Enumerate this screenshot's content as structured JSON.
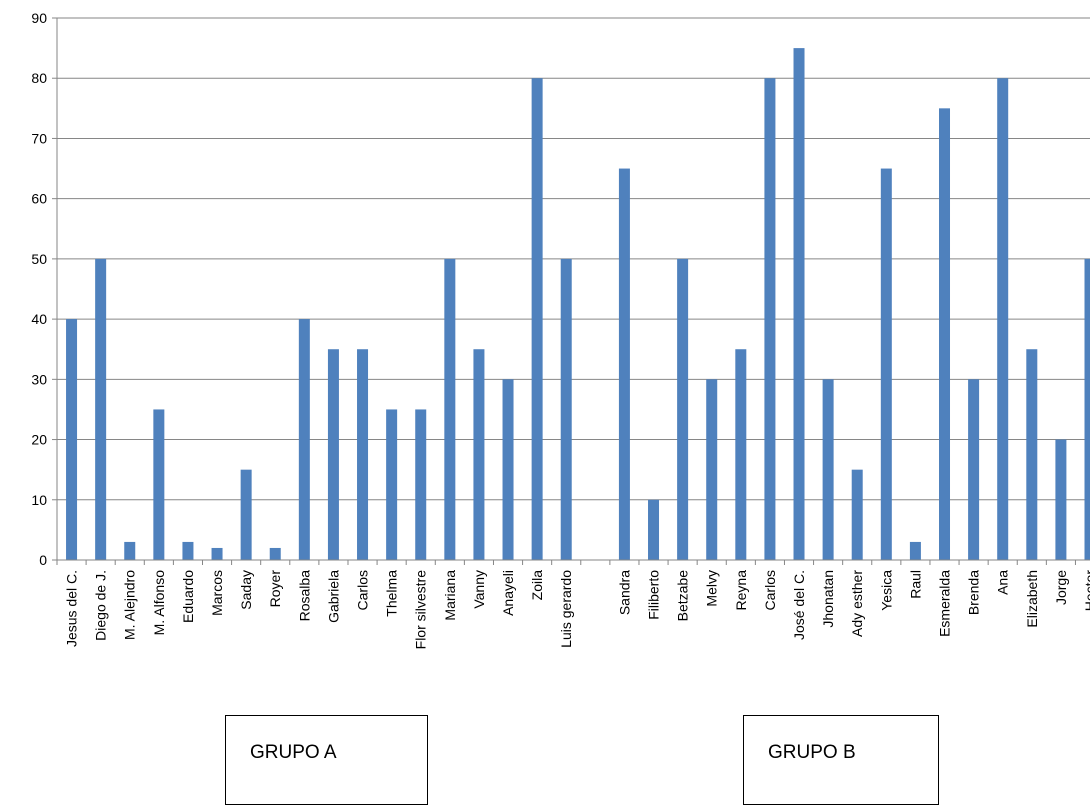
{
  "chart_data": {
    "type": "bar",
    "title": "",
    "xlabel": "",
    "ylabel": "",
    "ylim": [
      0,
      90
    ],
    "yticks": [
      0,
      10,
      20,
      30,
      40,
      50,
      60,
      70,
      80,
      90
    ],
    "grid": true,
    "legend": "none",
    "bar_color": "#4F81BD",
    "categories": [
      "Jesus del C.",
      "Diego de J.",
      "M. Alejndro",
      "M. Alfonso",
      "Eduardo",
      "Marcos",
      "Saday",
      "Royer",
      "Rosalba",
      "Gabriela",
      "Carlos",
      "Thelma",
      "Flor silvestre",
      "Mariana",
      "Vanny",
      "Anayeli",
      "Zoila",
      "Luis gerardo",
      "",
      "Sandra",
      "Filiberto",
      "Betzabe",
      "Melvy",
      "Reyna",
      "Carlos",
      "José  del C.",
      "Jhonatan",
      "Ady esther",
      "Yesica",
      "Raul",
      "Esmeralda",
      "Brenda",
      "Ana",
      "Elizabeth",
      "Jorge",
      "Hector"
    ],
    "values": [
      40,
      50,
      3,
      25,
      3,
      2,
      15,
      2,
      40,
      35,
      35,
      25,
      25,
      50,
      35,
      30,
      80,
      50,
      null,
      65,
      10,
      50,
      30,
      35,
      80,
      85,
      30,
      15,
      65,
      3,
      75,
      30,
      80,
      35,
      20,
      50
    ]
  },
  "groups": {
    "a_label": "GRUPO A",
    "b_label": "GRUPO B"
  }
}
